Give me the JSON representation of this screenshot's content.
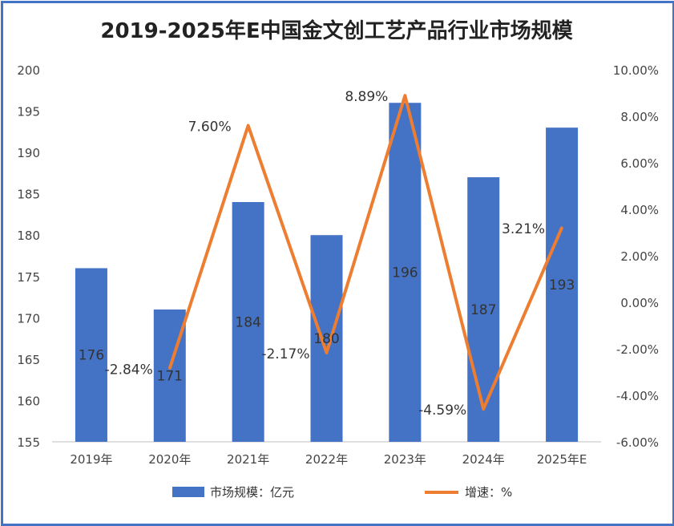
{
  "chart_data": {
    "type": "bar+line",
    "title": "2019-2025年E中国金文创工艺产品行业市场规模",
    "categories": [
      "2019年",
      "2020年",
      "2021年",
      "2022年",
      "2023年",
      "2024年",
      "2025年E"
    ],
    "series": [
      {
        "name": "市场规模：亿元",
        "type": "bar",
        "axis": "left",
        "color": "#4472c4",
        "values": [
          176,
          171,
          184,
          180,
          196,
          187,
          193
        ],
        "labels": [
          "176",
          "171",
          "184",
          "180",
          "196",
          "187",
          "193"
        ]
      },
      {
        "name": "增速：%",
        "type": "line",
        "axis": "right",
        "color": "#ed7d31",
        "values": [
          null,
          -2.84,
          7.6,
          -2.17,
          8.89,
          -4.59,
          3.21
        ],
        "labels": [
          "",
          "-2.84%",
          "7.60%",
          "-2.17%",
          "8.89%",
          "-4.59%",
          "3.21%"
        ]
      }
    ],
    "ylim_left": [
      155,
      200
    ],
    "yticks_left": [
      "155",
      "160",
      "165",
      "170",
      "175",
      "180",
      "185",
      "190",
      "195",
      "200"
    ],
    "ylim_right": [
      -6,
      10
    ],
    "yticks_right": [
      "-6.00%",
      "-4.00%",
      "-2.00%",
      "0.00%",
      "2.00%",
      "4.00%",
      "6.00%",
      "8.00%",
      "10.00%"
    ],
    "legend_position": "bottom",
    "grid": false
  }
}
